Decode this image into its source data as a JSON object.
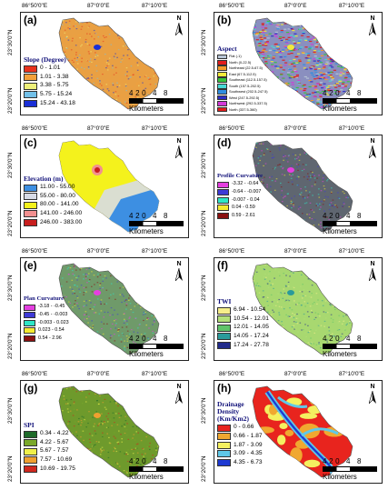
{
  "axes": {
    "x_ticks": [
      "86°50'0\"E",
      "87°0'0\"E",
      "87°10'0\"E"
    ],
    "y_ticks": [
      "23°30'0\"N",
      "23°20'0\"N"
    ]
  },
  "north_label": "N",
  "scale": {
    "numbers": "4 2 0   4   8",
    "unit": "Kilometers"
  },
  "panels": [
    {
      "letter": "(a)",
      "legend_title": "Slope (Degree)",
      "classes": [
        {
          "label": "0 - 1.01",
          "color": "#e8321e"
        },
        {
          "label": "1.01 - 3.38",
          "color": "#f2a03a"
        },
        {
          "label": "3.38 - 5.75",
          "color": "#eef07a"
        },
        {
          "label": "5.75 - 15.24",
          "color": "#72c0e8"
        },
        {
          "label": "15.24 - 43.18",
          "color": "#1a2fd6"
        }
      ],
      "map_base": "#e9a043"
    },
    {
      "letter": "(b)",
      "legend_title": "Aspect",
      "classes": [
        {
          "label": "Flat (-1)",
          "color": "#b8c6d6"
        },
        {
          "label": "North (0-22.5)",
          "color": "#e11c1c"
        },
        {
          "label": "Northeast (22.5-67.5)",
          "color": "#f39a2a"
        },
        {
          "label": "East (67.5-112.5)",
          "color": "#f2ea3a"
        },
        {
          "label": "Southeast (112.5-157.5)",
          "color": "#37c43a"
        },
        {
          "label": "South (157.5-202.5)",
          "color": "#47d9d5"
        },
        {
          "label": "Southwest (202.5-247.5)",
          "color": "#2e8ee0"
        },
        {
          "label": "West (247.5-292.5)",
          "color": "#2b2dc6"
        },
        {
          "label": "Northwest (292.5-337.5)",
          "color": "#d23ad6"
        },
        {
          "label": "North (337.5-360)",
          "color": "#e11c1c"
        }
      ],
      "map_base": "#8a8fbf"
    },
    {
      "letter": "(c)",
      "legend_title": "Elevation (m)",
      "classes": [
        {
          "label": "11.00 - 55.00",
          "color": "#3d8fe2"
        },
        {
          "label": "55.00 - 80.00",
          "color": "#d7dbe6"
        },
        {
          "label": "80.00 - 141.00",
          "color": "#f4f21c"
        },
        {
          "label": "141.00 - 246.00",
          "color": "#f29090"
        },
        {
          "label": "246.00 - 383.00",
          "color": "#c81e1e"
        }
      ],
      "map_base": "#f4f21c"
    },
    {
      "letter": "(d)",
      "legend_title": "Profile Curvature",
      "classes": [
        {
          "label": "-3.32 - -0.64",
          "color": "#e53fe0"
        },
        {
          "label": "-0.64 - -0.007",
          "color": "#3e3ad6"
        },
        {
          "label": "-0.007 - 0.04",
          "color": "#2ee6c6"
        },
        {
          "label": "0.04 - 0.59",
          "color": "#f5ea30"
        },
        {
          "label": "0.59 - 2.61",
          "color": "#8a1010"
        }
      ],
      "map_base": "#5f6670"
    },
    {
      "letter": "(e)",
      "legend_title": "Plan Curvature",
      "classes": [
        {
          "label": "-3.18 - -0.45",
          "color": "#e53fe0"
        },
        {
          "label": "-0.45 - -0.003",
          "color": "#3e3ad6"
        },
        {
          "label": "-0.003 - 0.023",
          "color": "#2ee6c6"
        },
        {
          "label": "0.023 - 0.54",
          "color": "#f5ea30"
        },
        {
          "label": "0.54 - 2.96",
          "color": "#8a1010"
        }
      ],
      "map_base": "#6f9a6a"
    },
    {
      "letter": "(f)",
      "legend_title": "TWI",
      "classes": [
        {
          "label": "6.94 - 10.54",
          "color": "#f5ee8a"
        },
        {
          "label": "10.54 - 12.01",
          "color": "#b2e07a"
        },
        {
          "label": "12.01 - 14.05",
          "color": "#5fc46a"
        },
        {
          "label": "14.05 - 17.24",
          "color": "#2a9a9a"
        },
        {
          "label": "17.24 - 27.78",
          "color": "#202a8a"
        }
      ],
      "map_base": "#a8d870"
    },
    {
      "letter": "(g)",
      "legend_title": "SPI",
      "classes": [
        {
          "label": "0.34 - 4.22",
          "color": "#1f6b2a"
        },
        {
          "label": "4.22 - 5.67",
          "color": "#7aa82a"
        },
        {
          "label": "5.67 - 7.57",
          "color": "#f0f04a"
        },
        {
          "label": "7.57 - 10.69",
          "color": "#f0a030"
        },
        {
          "label": "10.69 - 19.75",
          "color": "#d0281e"
        }
      ],
      "map_base": "#6e9a2c"
    },
    {
      "letter": "(h)",
      "legend_title": "Drainage Density (Km/Km2)",
      "classes": [
        {
          "label": "0 - 0.66",
          "color": "#e8241e"
        },
        {
          "label": "0.66 - 1.87",
          "color": "#f0a830"
        },
        {
          "label": "1.87 - 3.09",
          "color": "#f4f060"
        },
        {
          "label": "3.09 - 4.35",
          "color": "#5fc8e8"
        },
        {
          "label": "4.35 - 6.73",
          "color": "#1e3ad2"
        }
      ],
      "map_base": "#e8241e"
    }
  ]
}
